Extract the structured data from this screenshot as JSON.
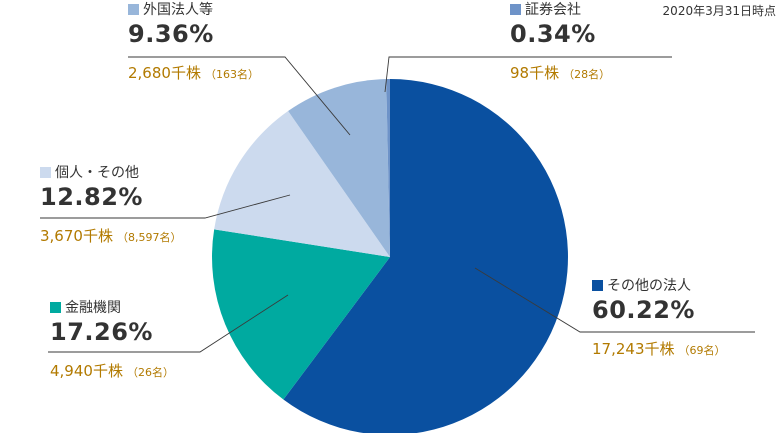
{
  "as_of": "2020年3月31日時点",
  "chart_data": {
    "type": "pie",
    "start_angle_deg": 0,
    "direction": "clockwise",
    "slices": [
      {
        "name": "その他の法人",
        "percent": 60.22,
        "value": "60.22%",
        "shares": "17,243千株",
        "holders": "（69名）",
        "color": "#0a50a0"
      },
      {
        "name": "金融機関",
        "percent": 17.26,
        "value": "17.26%",
        "shares": "4,940千株",
        "holders": "（26名）",
        "color": "#00aaa0"
      },
      {
        "name": "個人・その他",
        "percent": 12.82,
        "value": "12.82%",
        "shares": "3,670千株",
        "holders": "（8,597名）",
        "color": "#ccdaee"
      },
      {
        "name": "外国法人等",
        "percent": 9.36,
        "value": "9.36%",
        "shares": "2,680千株",
        "holders": "（163名）",
        "color": "#98b6da"
      },
      {
        "name": "証券会社",
        "percent": 0.34,
        "value": "0.34%",
        "shares": "98千株",
        "holders": "（28名）",
        "color": "#6e93c8"
      }
    ]
  }
}
